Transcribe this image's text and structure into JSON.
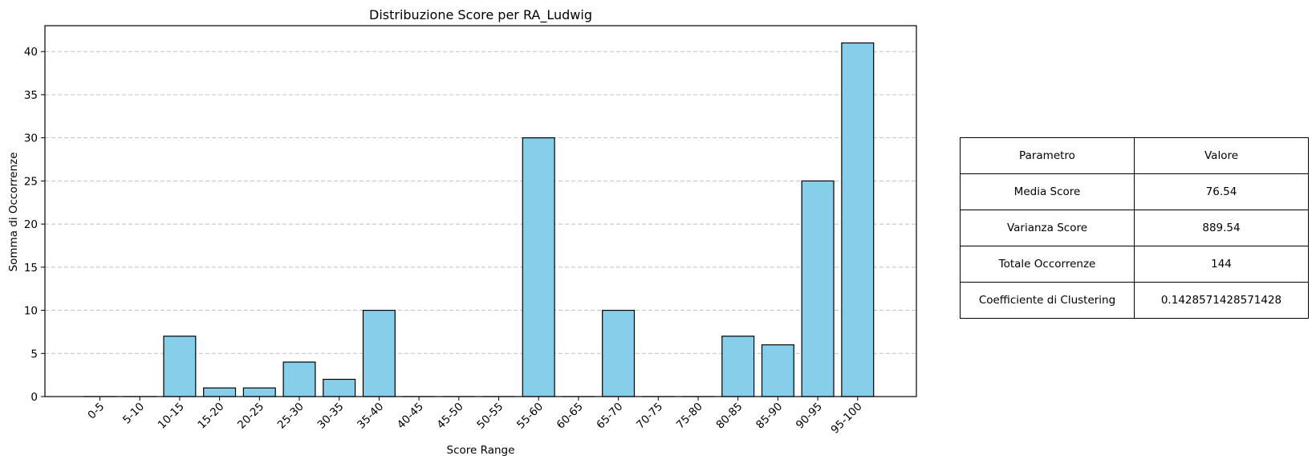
{
  "chart_data": {
    "type": "bar",
    "title": "Distribuzione Score per RA_Ludwig",
    "xlabel": "Score Range",
    "ylabel": "Somma di Occorrenze",
    "categories": [
      "0-5",
      "5-10",
      "10-15",
      "15-20",
      "20-25",
      "25-30",
      "30-35",
      "35-40",
      "40-45",
      "45-50",
      "50-55",
      "55-60",
      "60-65",
      "65-70",
      "70-75",
      "75-80",
      "80-85",
      "85-90",
      "90-95",
      "95-100"
    ],
    "values": [
      0,
      0,
      7,
      1,
      1,
      4,
      2,
      10,
      0,
      0,
      0,
      30,
      0,
      10,
      0,
      0,
      7,
      6,
      25,
      41
    ],
    "ylim": [
      0,
      43
    ],
    "yticks": [
      0,
      5,
      10,
      15,
      20,
      25,
      30,
      35,
      40
    ],
    "grid": "y-dashed",
    "bar_color": "#87CEEB",
    "bar_edge_color": "#000000",
    "grid_color": "#c0c0c0"
  },
  "table": {
    "header": [
      "Parametro",
      "Valore"
    ],
    "rows": [
      [
        "Media Score",
        "76.54"
      ],
      [
        "Varianza Score",
        "889.54"
      ],
      [
        "Totale Occorrenze",
        "144"
      ],
      [
        "Coefficiente di Clustering",
        "0.1428571428571428"
      ]
    ]
  }
}
